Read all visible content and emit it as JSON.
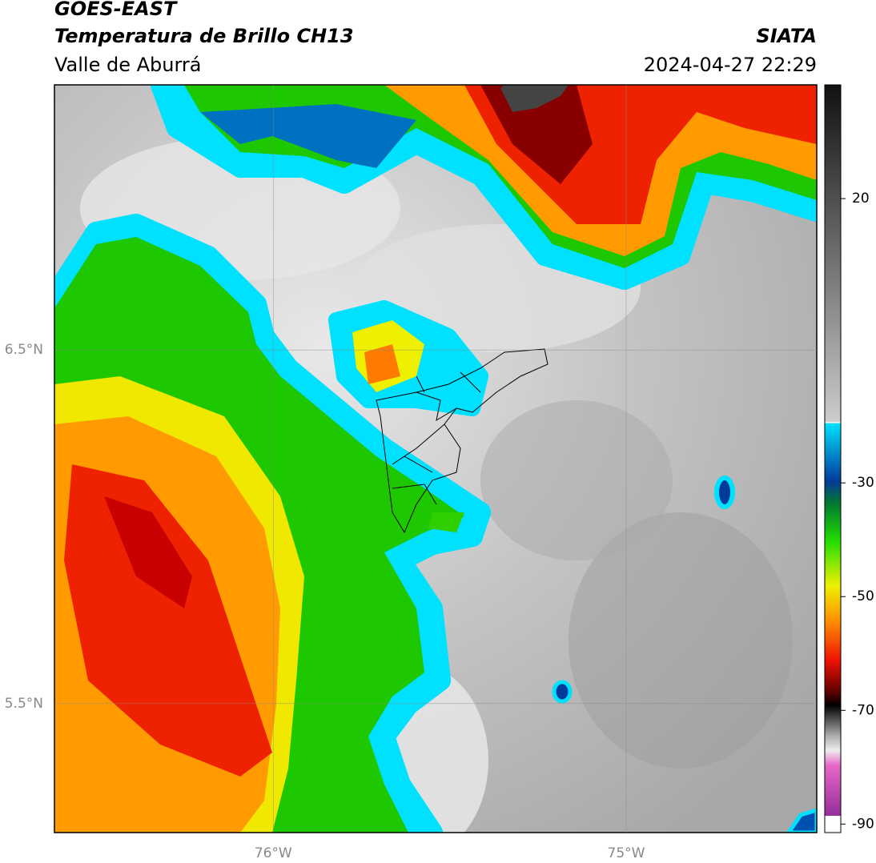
{
  "header": {
    "title": "GOES-EAST",
    "subtitle": "Temperatura de Brillo CH13",
    "region": "Valle de Aburrá",
    "source": "SIATA",
    "datetime": "2024-04-27 22:29"
  },
  "map": {
    "xlim": [
      -76.62,
      -74.46
    ],
    "ylim": [
      5.135,
      7.25
    ],
    "xticks": [
      {
        "value": -76,
        "label": "76°W"
      },
      {
        "value": -75,
        "label": "75°W"
      }
    ],
    "yticks": [
      {
        "value": 6.5,
        "label": "6.5°N"
      },
      {
        "value": 5.5,
        "label": "5.5°N"
      }
    ]
  },
  "colorbar": {
    "lim": [
      -91.5,
      40
    ],
    "ticks": [
      20,
      -30,
      -50,
      -70,
      -90
    ]
  }
}
